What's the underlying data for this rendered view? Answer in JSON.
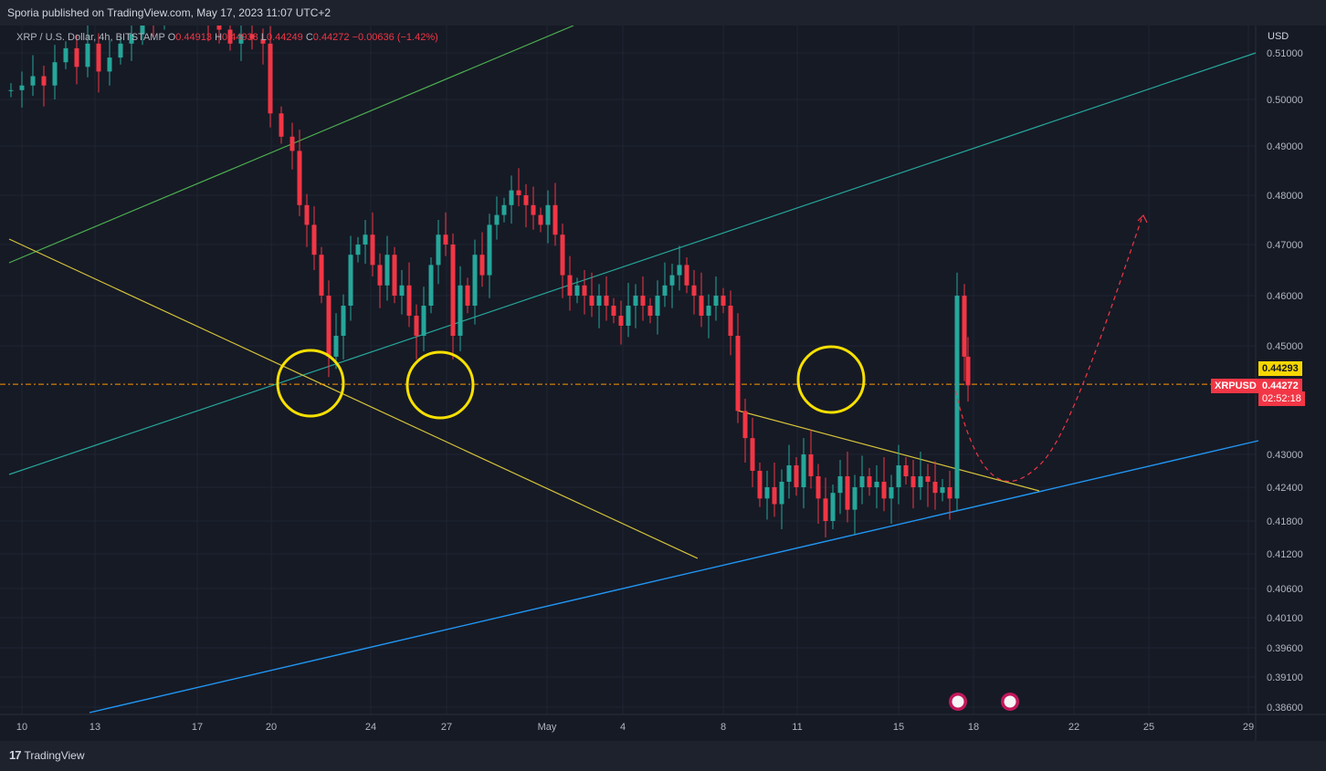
{
  "header": {
    "publish_text": "Sporia published on TradingView.com, May 17, 2023 11:07 UTC+2"
  },
  "legend": {
    "symbol": "XRP / U.S. Dollar, 4h, BITSTAMP",
    "open_label": "O",
    "open": "0.44913",
    "high_label": "H",
    "high": "0.44938",
    "low_label": "L",
    "low": "0.44249",
    "close_label": "C",
    "close": "0.44272",
    "change": "−0.00636 (−1.42%)"
  },
  "axis": {
    "currency": "USD"
  },
  "price_tags": {
    "level_value": "0.44293",
    "symbol_tag": "XRPUSD",
    "last_price": "0.44272",
    "countdown": "02:52:18"
  },
  "footer": {
    "brand": "TradingView"
  },
  "colors": {
    "background": "#161a25",
    "up": "#26a69a",
    "down": "#f23645",
    "yellow": "#f7d700",
    "teal_line": "#26a69a",
    "green_line": "#4caf50",
    "blue_line": "#2196f3",
    "orange_level": "#ff9800"
  },
  "chart_data": {
    "type": "candlestick",
    "title": "XRP / U.S. Dollar, 4h, BITSTAMP",
    "y_ticks": [
      0.51,
      0.5,
      0.49,
      0.48,
      0.47,
      0.46,
      0.45,
      0.43,
      0.424,
      0.418,
      0.412,
      0.406,
      0.401,
      0.396,
      0.391,
      0.386
    ],
    "y_tick_labels": [
      "0.51000",
      "0.50000",
      "0.49000",
      "0.48000",
      "0.47000",
      "0.46000",
      "0.45000",
      "0.43000",
      "0.42400",
      "0.41800",
      "0.41200",
      "0.40600",
      "0.40100",
      "0.39600",
      "0.39100",
      "0.38600"
    ],
    "x_ticks": [
      "10",
      "13",
      "17",
      "20",
      "24",
      "27",
      "May",
      "4",
      "8",
      "11",
      "15",
      "18",
      "22",
      "25",
      "29"
    ],
    "horizontal_level": 0.44293,
    "last_price": 0.44272,
    "price_path": [
      [
        0,
        0.502
      ],
      [
        12,
        0.503
      ],
      [
        24,
        0.505
      ],
      [
        36,
        0.503
      ],
      [
        48,
        0.508
      ],
      [
        60,
        0.511
      ],
      [
        72,
        0.507
      ],
      [
        84,
        0.512
      ],
      [
        96,
        0.506
      ],
      [
        108,
        0.509
      ],
      [
        120,
        0.512
      ],
      [
        132,
        0.514
      ],
      [
        144,
        0.52
      ],
      [
        156,
        0.518
      ],
      [
        168,
        0.522
      ],
      [
        180,
        0.521
      ],
      [
        192,
        0.524
      ],
      [
        204,
        0.519
      ],
      [
        216,
        0.517
      ],
      [
        228,
        0.515
      ],
      [
        240,
        0.512
      ],
      [
        252,
        0.514
      ],
      [
        264,
        0.513
      ],
      [
        276,
        0.512
      ],
      [
        284,
        0.497
      ],
      [
        296,
        0.492
      ],
      [
        308,
        0.489
      ],
      [
        316,
        0.478
      ],
      [
        324,
        0.474
      ],
      [
        332,
        0.468
      ],
      [
        340,
        0.46
      ],
      [
        348,
        0.448
      ],
      [
        356,
        0.452
      ],
      [
        364,
        0.458
      ],
      [
        372,
        0.468
      ],
      [
        380,
        0.47
      ],
      [
        388,
        0.472
      ],
      [
        396,
        0.466
      ],
      [
        404,
        0.462
      ],
      [
        412,
        0.468
      ],
      [
        420,
        0.46
      ],
      [
        428,
        0.462
      ],
      [
        436,
        0.456
      ],
      [
        444,
        0.452
      ],
      [
        452,
        0.458
      ],
      [
        460,
        0.466
      ],
      [
        468,
        0.472
      ],
      [
        476,
        0.47
      ],
      [
        484,
        0.452
      ],
      [
        492,
        0.462
      ],
      [
        500,
        0.458
      ],
      [
        508,
        0.468
      ],
      [
        516,
        0.464
      ],
      [
        524,
        0.474
      ],
      [
        532,
        0.476
      ],
      [
        540,
        0.478
      ],
      [
        548,
        0.481
      ],
      [
        556,
        0.48
      ],
      [
        564,
        0.478
      ],
      [
        572,
        0.476
      ],
      [
        580,
        0.474
      ],
      [
        588,
        0.478
      ],
      [
        596,
        0.472
      ],
      [
        604,
        0.464
      ],
      [
        612,
        0.46
      ],
      [
        620,
        0.462
      ],
      [
        628,
        0.46
      ],
      [
        636,
        0.458
      ],
      [
        644,
        0.46
      ],
      [
        652,
        0.458
      ],
      [
        660,
        0.456
      ],
      [
        668,
        0.454
      ],
      [
        676,
        0.458
      ],
      [
        684,
        0.46
      ],
      [
        692,
        0.458
      ],
      [
        700,
        0.456
      ],
      [
        708,
        0.46
      ],
      [
        716,
        0.462
      ],
      [
        724,
        0.464
      ],
      [
        732,
        0.466
      ],
      [
        740,
        0.462
      ],
      [
        748,
        0.46
      ],
      [
        756,
        0.456
      ],
      [
        764,
        0.458
      ],
      [
        772,
        0.46
      ],
      [
        780,
        0.458
      ],
      [
        788,
        0.452
      ],
      [
        796,
        0.438
      ],
      [
        804,
        0.433
      ],
      [
        812,
        0.427
      ],
      [
        820,
        0.422
      ],
      [
        828,
        0.424
      ],
      [
        836,
        0.421
      ],
      [
        844,
        0.425
      ],
      [
        852,
        0.428
      ],
      [
        860,
        0.424
      ],
      [
        868,
        0.43
      ],
      [
        876,
        0.426
      ],
      [
        884,
        0.422
      ],
      [
        892,
        0.418
      ],
      [
        900,
        0.423
      ],
      [
        908,
        0.426
      ],
      [
        916,
        0.42
      ],
      [
        924,
        0.424
      ],
      [
        932,
        0.426
      ],
      [
        940,
        0.424
      ],
      [
        948,
        0.425
      ],
      [
        956,
        0.422
      ],
      [
        964,
        0.424
      ],
      [
        972,
        0.428
      ],
      [
        980,
        0.426
      ],
      [
        988,
        0.424
      ],
      [
        996,
        0.426
      ],
      [
        1004,
        0.425
      ],
      [
        1012,
        0.423
      ],
      [
        1020,
        0.424
      ],
      [
        1028,
        0.422
      ],
      [
        1036,
        0.46
      ],
      [
        1044,
        0.448
      ],
      [
        1048,
        0.44272
      ]
    ]
  }
}
